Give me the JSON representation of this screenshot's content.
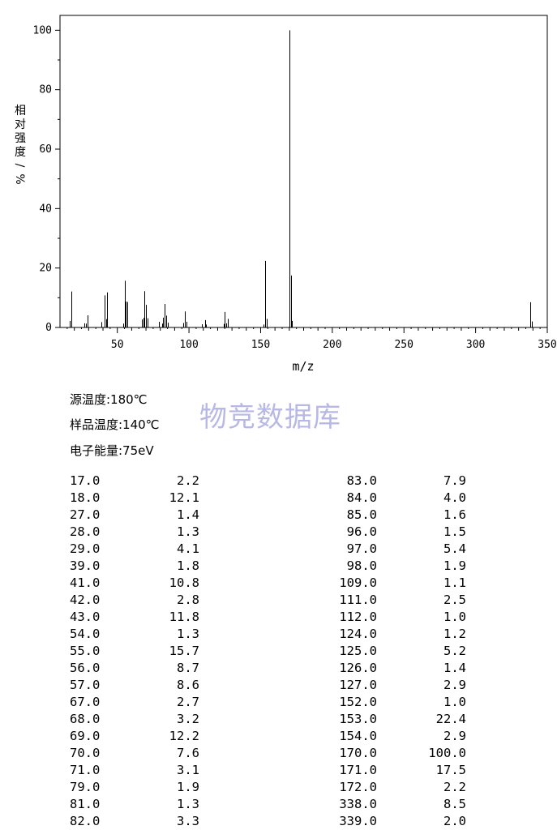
{
  "chart_data": {
    "type": "bar",
    "xlabel": "m/z",
    "ylabel": "相对强度/%",
    "xlim": [
      10,
      350
    ],
    "ylim": [
      0,
      105
    ],
    "x_ticks": [
      "50",
      "100",
      "150",
      "200",
      "250",
      "300",
      "350"
    ],
    "y_ticks": [
      "0",
      "20",
      "40",
      "60",
      "80",
      "100"
    ],
    "peaks": [
      [
        17.0,
        2.2
      ],
      [
        18.0,
        12.1
      ],
      [
        27.0,
        1.4
      ],
      [
        28.0,
        1.3
      ],
      [
        29.0,
        4.1
      ],
      [
        39.0,
        1.8
      ],
      [
        41.0,
        10.8
      ],
      [
        42.0,
        2.8
      ],
      [
        43.0,
        11.8
      ],
      [
        54.0,
        1.3
      ],
      [
        55.0,
        15.7
      ],
      [
        56.0,
        8.7
      ],
      [
        57.0,
        8.6
      ],
      [
        67.0,
        2.7
      ],
      [
        68.0,
        3.2
      ],
      [
        69.0,
        12.2
      ],
      [
        70.0,
        7.6
      ],
      [
        71.0,
        3.1
      ],
      [
        79.0,
        1.9
      ],
      [
        81.0,
        1.3
      ],
      [
        82.0,
        3.3
      ],
      [
        83.0,
        7.9
      ],
      [
        84.0,
        4.0
      ],
      [
        85.0,
        1.6
      ],
      [
        96.0,
        1.5
      ],
      [
        97.0,
        5.4
      ],
      [
        98.0,
        1.9
      ],
      [
        109.0,
        1.1
      ],
      [
        111.0,
        2.5
      ],
      [
        112.0,
        1.0
      ],
      [
        124.0,
        1.2
      ],
      [
        125.0,
        5.2
      ],
      [
        126.0,
        1.4
      ],
      [
        127.0,
        2.9
      ],
      [
        152.0,
        1.0
      ],
      [
        153.0,
        22.4
      ],
      [
        154.0,
        2.9
      ],
      [
        170.0,
        100.0
      ],
      [
        171.0,
        17.5
      ],
      [
        172.0,
        2.2
      ],
      [
        338.0,
        8.5
      ],
      [
        339.0,
        2.0
      ]
    ]
  },
  "conditions": {
    "source_temp": "源温度:180℃",
    "sample_temp": "样品温度:140℃",
    "electron_energy": "电子能量:75eV"
  },
  "watermark": "物竞数据库",
  "table_left": [
    [
      "17.0",
      "2.2"
    ],
    [
      "18.0",
      "12.1"
    ],
    [
      "27.0",
      "1.4"
    ],
    [
      "28.0",
      "1.3"
    ],
    [
      "29.0",
      "4.1"
    ],
    [
      "39.0",
      "1.8"
    ],
    [
      "41.0",
      "10.8"
    ],
    [
      "42.0",
      "2.8"
    ],
    [
      "43.0",
      "11.8"
    ],
    [
      "54.0",
      "1.3"
    ],
    [
      "55.0",
      "15.7"
    ],
    [
      "56.0",
      "8.7"
    ],
    [
      "57.0",
      "8.6"
    ],
    [
      "67.0",
      "2.7"
    ],
    [
      "68.0",
      "3.2"
    ],
    [
      "69.0",
      "12.2"
    ],
    [
      "70.0",
      "7.6"
    ],
    [
      "71.0",
      "3.1"
    ],
    [
      "79.0",
      "1.9"
    ],
    [
      "81.0",
      "1.3"
    ],
    [
      "82.0",
      "3.3"
    ]
  ],
  "table_right": [
    [
      "83.0",
      "7.9"
    ],
    [
      "84.0",
      "4.0"
    ],
    [
      "85.0",
      "1.6"
    ],
    [
      "96.0",
      "1.5"
    ],
    [
      "97.0",
      "5.4"
    ],
    [
      "98.0",
      "1.9"
    ],
    [
      "109.0",
      "1.1"
    ],
    [
      "111.0",
      "2.5"
    ],
    [
      "112.0",
      "1.0"
    ],
    [
      "124.0",
      "1.2"
    ],
    [
      "125.0",
      "5.2"
    ],
    [
      "126.0",
      "1.4"
    ],
    [
      "127.0",
      "2.9"
    ],
    [
      "152.0",
      "1.0"
    ],
    [
      "153.0",
      "22.4"
    ],
    [
      "154.0",
      "2.9"
    ],
    [
      "170.0",
      "100.0"
    ],
    [
      "171.0",
      "17.5"
    ],
    [
      "172.0",
      "2.2"
    ],
    [
      "338.0",
      "8.5"
    ],
    [
      "339.0",
      "2.0"
    ]
  ]
}
